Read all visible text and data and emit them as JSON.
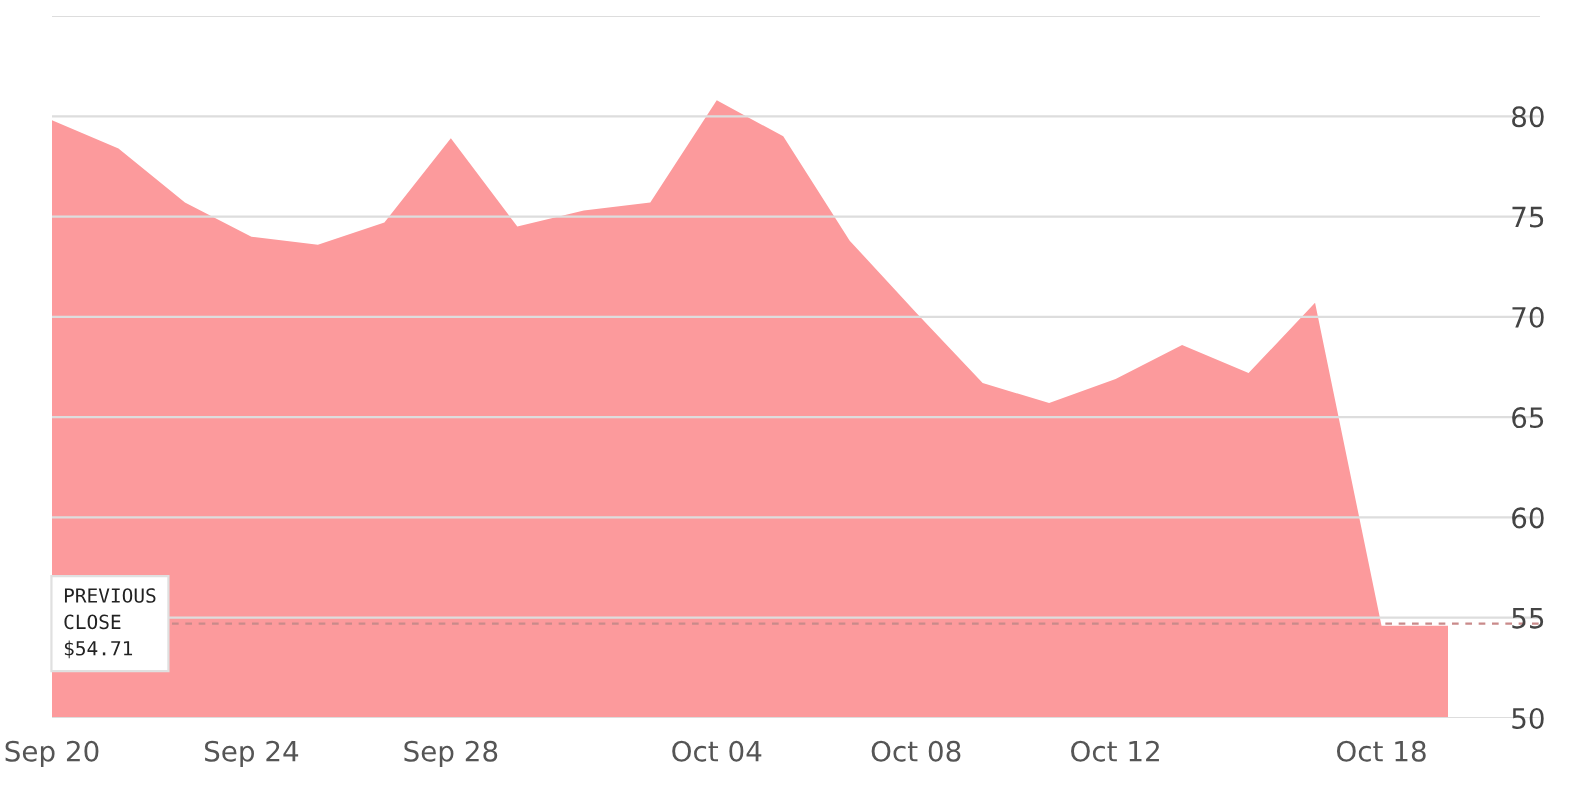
{
  "chart_data": {
    "type": "area",
    "categories": [
      "Sep 20",
      null,
      null,
      "Sep 24",
      null,
      null,
      "Sep 28",
      null,
      null,
      null,
      "Oct 04",
      null,
      null,
      "Oct 08",
      null,
      null,
      "Oct 12",
      null,
      null,
      null,
      "Oct 18",
      null
    ],
    "series": [
      {
        "color": "#fc9a9c",
        "values": [
          79.8,
          78.4,
          75.7,
          74.0,
          73.6,
          74.7,
          78.9,
          74.5,
          75.3,
          75.7,
          80.8,
          79.0,
          73.8,
          70.2,
          66.7,
          65.7,
          66.9,
          68.6,
          67.2,
          70.7,
          54.6,
          54.6
        ]
      }
    ],
    "ylim": [
      50,
      85
    ],
    "yticks": [
      50,
      55,
      60,
      65,
      70,
      75,
      80,
      {
        "value": 85,
        "label": null
      }
    ],
    "grid": "y",
    "ref_lines": [
      {
        "axis": "y",
        "value": 54.71,
        "label": "PREVIOUS\nCLOSE\n$54.71",
        "color": "#c98a8a",
        "line_style": "dashed"
      }
    ]
  }
}
